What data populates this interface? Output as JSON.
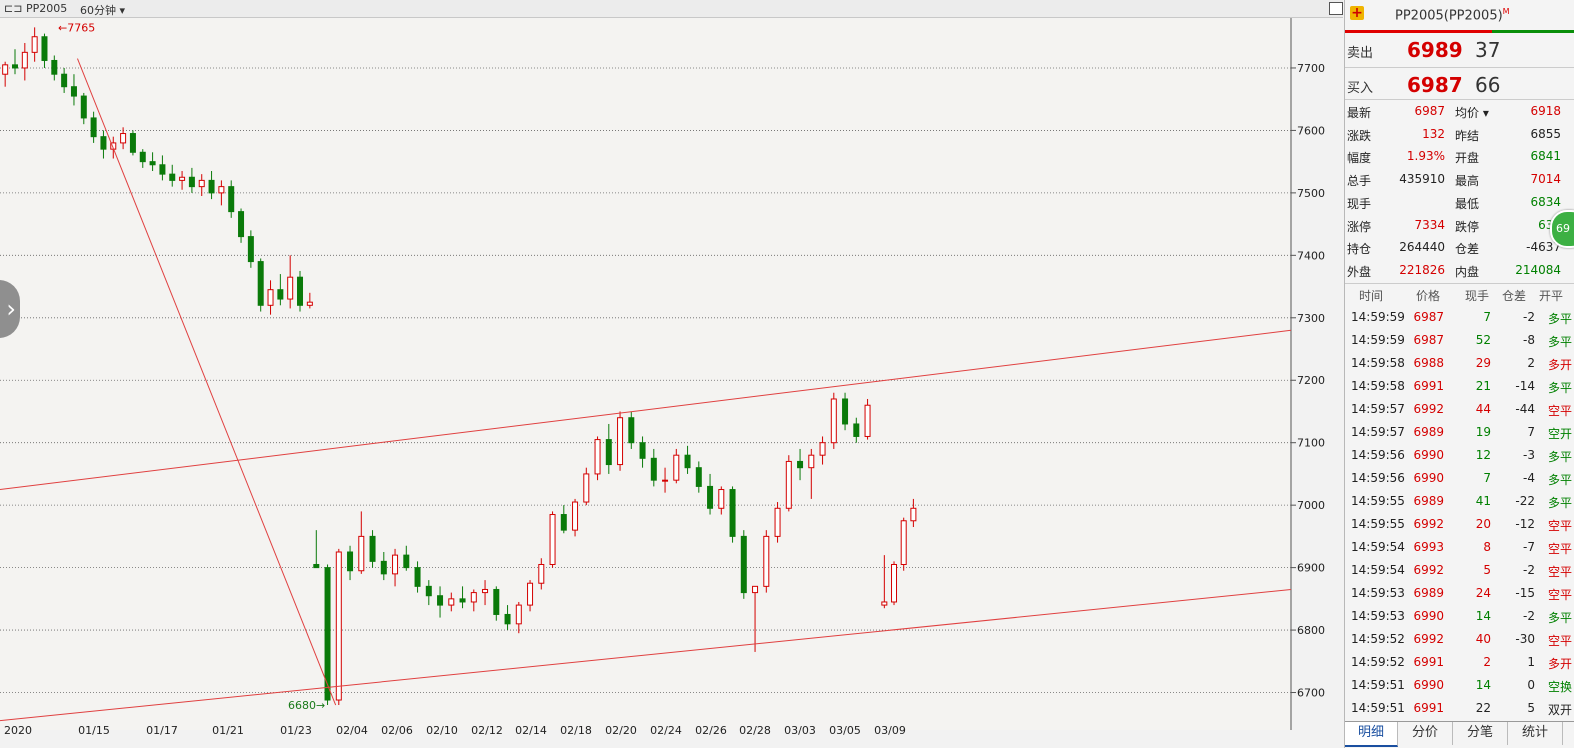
{
  "header": {
    "symbol": "PP2005",
    "period": "60分钟",
    "chart_icon": "chart-switch-icon",
    "dropdown_icon": "caret-down-icon"
  },
  "chart_data": {
    "type": "candlestick",
    "y_ticks": [
      6700,
      6800,
      6900,
      7000,
      7100,
      7200,
      7300,
      7400,
      7500,
      7600,
      7700
    ],
    "ylim": [
      6640,
      7780
    ],
    "x_labels": [
      "2020",
      "01/15",
      "01/17",
      "01/21",
      "01/23",
      "02/04",
      "02/06",
      "02/10",
      "02/12",
      "02/14",
      "02/18",
      "02/20",
      "02/24",
      "02/26",
      "02/28",
      "03/03",
      "03/05",
      "03/09"
    ],
    "annotations": {
      "high_label": "7765",
      "low_label": "6680"
    },
    "candles": [
      [
        7690,
        7710,
        7670,
        7705
      ],
      [
        7705,
        7730,
        7690,
        7700
      ],
      [
        7700,
        7740,
        7680,
        7725
      ],
      [
        7725,
        7765,
        7710,
        7750
      ],
      [
        7750,
        7755,
        7700,
        7712
      ],
      [
        7712,
        7720,
        7680,
        7690
      ],
      [
        7690,
        7700,
        7660,
        7670
      ],
      [
        7670,
        7690,
        7640,
        7655
      ],
      [
        7655,
        7660,
        7610,
        7620
      ],
      [
        7620,
        7630,
        7580,
        7590
      ],
      [
        7590,
        7600,
        7555,
        7570
      ],
      [
        7570,
        7590,
        7555,
        7580
      ],
      [
        7580,
        7605,
        7570,
        7595
      ],
      [
        7595,
        7600,
        7560,
        7565
      ],
      [
        7565,
        7570,
        7540,
        7550
      ],
      [
        7550,
        7565,
        7535,
        7545
      ],
      [
        7545,
        7560,
        7520,
        7530
      ],
      [
        7530,
        7545,
        7510,
        7520
      ],
      [
        7520,
        7535,
        7505,
        7525
      ],
      [
        7525,
        7540,
        7500,
        7510
      ],
      [
        7510,
        7530,
        7495,
        7520
      ],
      [
        7520,
        7535,
        7490,
        7500
      ],
      [
        7500,
        7520,
        7480,
        7510
      ],
      [
        7510,
        7520,
        7460,
        7470
      ],
      [
        7470,
        7475,
        7420,
        7430
      ],
      [
        7430,
        7440,
        7380,
        7390
      ],
      [
        7390,
        7395,
        7310,
        7320
      ],
      [
        7320,
        7360,
        7305,
        7345
      ],
      [
        7345,
        7370,
        7320,
        7330
      ],
      [
        7330,
        7400,
        7315,
        7365
      ],
      [
        7365,
        7375,
        7310,
        7320
      ],
      [
        7320,
        7340,
        7315,
        7325
      ],
      [
        6905,
        6960,
        6900,
        6900
      ],
      [
        6900,
        6905,
        6680,
        6688
      ],
      [
        6688,
        6930,
        6680,
        6925
      ],
      [
        6925,
        6935,
        6880,
        6895
      ],
      [
        6895,
        6990,
        6890,
        6950
      ],
      [
        6950,
        6960,
        6900,
        6910
      ],
      [
        6910,
        6925,
        6880,
        6890
      ],
      [
        6890,
        6930,
        6870,
        6920
      ],
      [
        6920,
        6935,
        6895,
        6900
      ],
      [
        6900,
        6910,
        6860,
        6870
      ],
      [
        6870,
        6880,
        6840,
        6855
      ],
      [
        6855,
        6870,
        6820,
        6840
      ],
      [
        6840,
        6860,
        6830,
        6850
      ],
      [
        6850,
        6870,
        6835,
        6845
      ],
      [
        6845,
        6865,
        6830,
        6860
      ],
      [
        6860,
        6880,
        6840,
        6865
      ],
      [
        6865,
        6870,
        6815,
        6825
      ],
      [
        6825,
        6840,
        6800,
        6810
      ],
      [
        6810,
        6845,
        6795,
        6840
      ],
      [
        6840,
        6880,
        6830,
        6875
      ],
      [
        6875,
        6915,
        6865,
        6905
      ],
      [
        6905,
        6990,
        6900,
        6985
      ],
      [
        6985,
        7000,
        6955,
        6960
      ],
      [
        6960,
        7010,
        6950,
        7005
      ],
      [
        7005,
        7060,
        7000,
        7050
      ],
      [
        7050,
        7110,
        7040,
        7105
      ],
      [
        7105,
        7130,
        7050,
        7065
      ],
      [
        7065,
        7150,
        7055,
        7140
      ],
      [
        7140,
        7150,
        7090,
        7100
      ],
      [
        7100,
        7110,
        7060,
        7075
      ],
      [
        7075,
        7090,
        7030,
        7040
      ],
      [
        7040,
        7060,
        7020,
        7040
      ],
      [
        7040,
        7090,
        7035,
        7080
      ],
      [
        7080,
        7095,
        7050,
        7060
      ],
      [
        7060,
        7070,
        7020,
        7030
      ],
      [
        7030,
        7050,
        6985,
        6995
      ],
      [
        6995,
        7030,
        6985,
        7025
      ],
      [
        7025,
        7030,
        6940,
        6950
      ],
      [
        6950,
        6960,
        6850,
        6860
      ],
      [
        6860,
        6870,
        6765,
        6870
      ],
      [
        6870,
        6960,
        6860,
        6950
      ],
      [
        6950,
        7005,
        6940,
        6995
      ],
      [
        6995,
        7080,
        6990,
        7070
      ],
      [
        7070,
        7090,
        7040,
        7060
      ],
      [
        7060,
        7090,
        7010,
        7080
      ],
      [
        7080,
        7110,
        7065,
        7100
      ],
      [
        7100,
        7180,
        7090,
        7170
      ],
      [
        7170,
        7180,
        7120,
        7130
      ],
      [
        7130,
        7140,
        7100,
        7110
      ],
      [
        7110,
        7170,
        7105,
        7160
      ],
      [
        6840,
        6920,
        6835,
        6845
      ],
      [
        6845,
        6910,
        6840,
        6905
      ],
      [
        6905,
        6980,
        6895,
        6975
      ],
      [
        6975,
        7010,
        6965,
        6995
      ]
    ],
    "lines": [
      {
        "from": [
          0,
          7025
        ],
        "to": [
          1,
          7280
        ]
      },
      {
        "from": [
          0,
          6655
        ],
        "to": [
          1,
          6865
        ]
      },
      {
        "from": [
          0.06,
          7715
        ],
        "to": [
          0.26,
          6680
        ]
      }
    ]
  },
  "quote": {
    "title": "PP2005(PP2005)",
    "title_sup": "M",
    "ask_label": "卖出",
    "ask_price": "6989",
    "ask_vol": "37",
    "bid_label": "买入",
    "bid_price": "6987",
    "bid_vol": "66",
    "rows": [
      {
        "l1": "最新",
        "v1": "6987",
        "c1": "red",
        "l2": "均价 ▾",
        "v2": "6918",
        "c2": "red"
      },
      {
        "l1": "涨跌",
        "v1": "132",
        "c1": "red",
        "l2": "昨结",
        "v2": "6855",
        "c2": "dark"
      },
      {
        "l1": "幅度",
        "v1": "1.93%",
        "c1": "red",
        "l2": "开盘",
        "v2": "6841",
        "c2": "green"
      },
      {
        "l1": "总手",
        "v1": "435910",
        "c1": "dark",
        "l2": "最高",
        "v2": "7014",
        "c2": "red"
      },
      {
        "l1": "现手",
        "v1": "",
        "c1": "dark",
        "l2": "最低",
        "v2": "6834",
        "c2": "green"
      },
      {
        "l1": "涨停",
        "v1": "7334",
        "c1": "red",
        "l2": "跌停",
        "v2": "637",
        "c2": "green"
      },
      {
        "l1": "持仓",
        "v1": "264440",
        "c1": "dark",
        "l2": "仓差",
        "v2": "-4637",
        "c2": "dark"
      },
      {
        "l1": "外盘",
        "v1": "221826",
        "c1": "red",
        "l2": "内盘",
        "v2": "214084",
        "c2": "green"
      }
    ],
    "bubble": "69"
  },
  "ticks": {
    "headers": [
      "时间",
      "价格",
      "现手",
      "仓差",
      "开平"
    ],
    "rows": [
      {
        "time": "14:59:59",
        "price": "6987",
        "vol": "7",
        "diff": "-2",
        "type": "多平",
        "tc": "green"
      },
      {
        "time": "14:59:59",
        "price": "6987",
        "vol": "52",
        "diff": "-8",
        "type": "多平",
        "tc": "green"
      },
      {
        "time": "14:59:58",
        "price": "6988",
        "vol": "29",
        "diff": "2",
        "type": "多开",
        "tc": "red"
      },
      {
        "time": "14:59:58",
        "price": "6991",
        "vol": "21",
        "diff": "-14",
        "type": "多平",
        "tc": "green"
      },
      {
        "time": "14:59:57",
        "price": "6992",
        "vol": "44",
        "diff": "-44",
        "type": "空平",
        "tc": "red"
      },
      {
        "time": "14:59:57",
        "price": "6989",
        "vol": "19",
        "diff": "7",
        "type": "空开",
        "tc": "green"
      },
      {
        "time": "14:59:56",
        "price": "6990",
        "vol": "12",
        "diff": "-3",
        "type": "多平",
        "tc": "green"
      },
      {
        "time": "14:59:56",
        "price": "6990",
        "vol": "7",
        "diff": "-4",
        "type": "多平",
        "tc": "green"
      },
      {
        "time": "14:59:55",
        "price": "6989",
        "vol": "41",
        "diff": "-22",
        "type": "多平",
        "tc": "green"
      },
      {
        "time": "14:59:55",
        "price": "6992",
        "vol": "20",
        "diff": "-12",
        "type": "空平",
        "tc": "red"
      },
      {
        "time": "14:59:54",
        "price": "6993",
        "vol": "8",
        "diff": "-7",
        "type": "空平",
        "tc": "red"
      },
      {
        "time": "14:59:54",
        "price": "6992",
        "vol": "5",
        "diff": "-2",
        "type": "空平",
        "tc": "red"
      },
      {
        "time": "14:59:53",
        "price": "6989",
        "vol": "24",
        "diff": "-15",
        "type": "空平",
        "tc": "red"
      },
      {
        "time": "14:59:53",
        "price": "6990",
        "vol": "14",
        "diff": "-2",
        "type": "多平",
        "tc": "green"
      },
      {
        "time": "14:59:52",
        "price": "6992",
        "vol": "40",
        "diff": "-30",
        "type": "空平",
        "tc": "red"
      },
      {
        "time": "14:59:52",
        "price": "6991",
        "vol": "2",
        "diff": "1",
        "type": "多开",
        "tc": "red"
      },
      {
        "time": "14:59:51",
        "price": "6990",
        "vol": "14",
        "diff": "0",
        "type": "空换",
        "tc": "green"
      },
      {
        "time": "14:59:51",
        "price": "6991",
        "vol": "22",
        "diff": "5",
        "type": "双开",
        "tc": "dark"
      }
    ]
  },
  "tabs": [
    "明细",
    "分价",
    "分笔",
    "统计"
  ],
  "colors": {
    "up": "#d40000",
    "down": "#0a7a0a",
    "line": "#e04040"
  }
}
